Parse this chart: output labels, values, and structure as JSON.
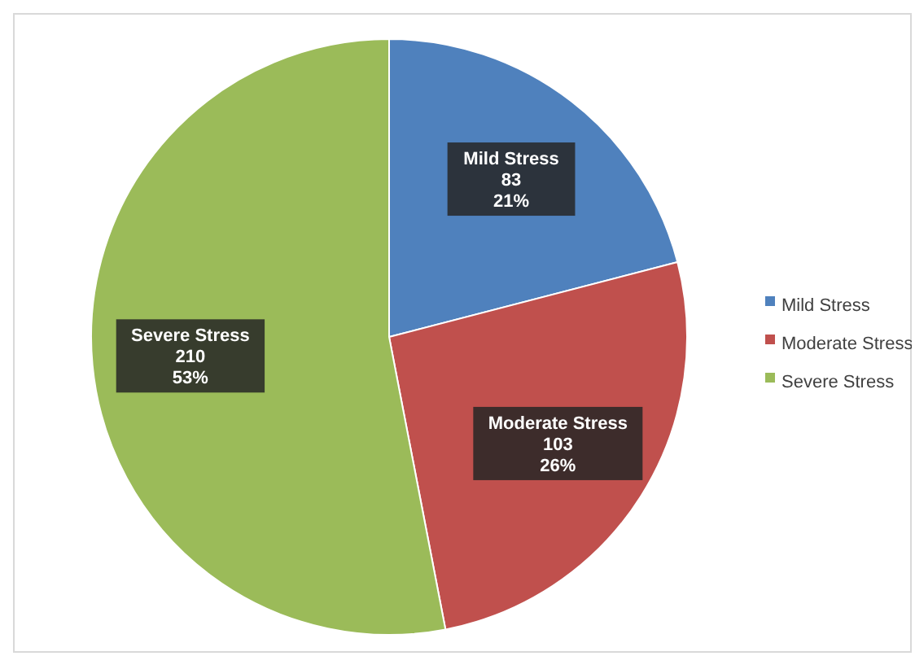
{
  "chart_data": {
    "type": "pie",
    "categories": [
      "Mild Stress",
      "Moderate Stress",
      "Severe Stress"
    ],
    "values": [
      83,
      103,
      210
    ],
    "colors": [
      "#4f81bd",
      "#c0504d",
      "#9bbb59"
    ],
    "value_labels": [
      "83\n21%",
      "103\n26%",
      "210\n53%"
    ],
    "legend": "right"
  }
}
